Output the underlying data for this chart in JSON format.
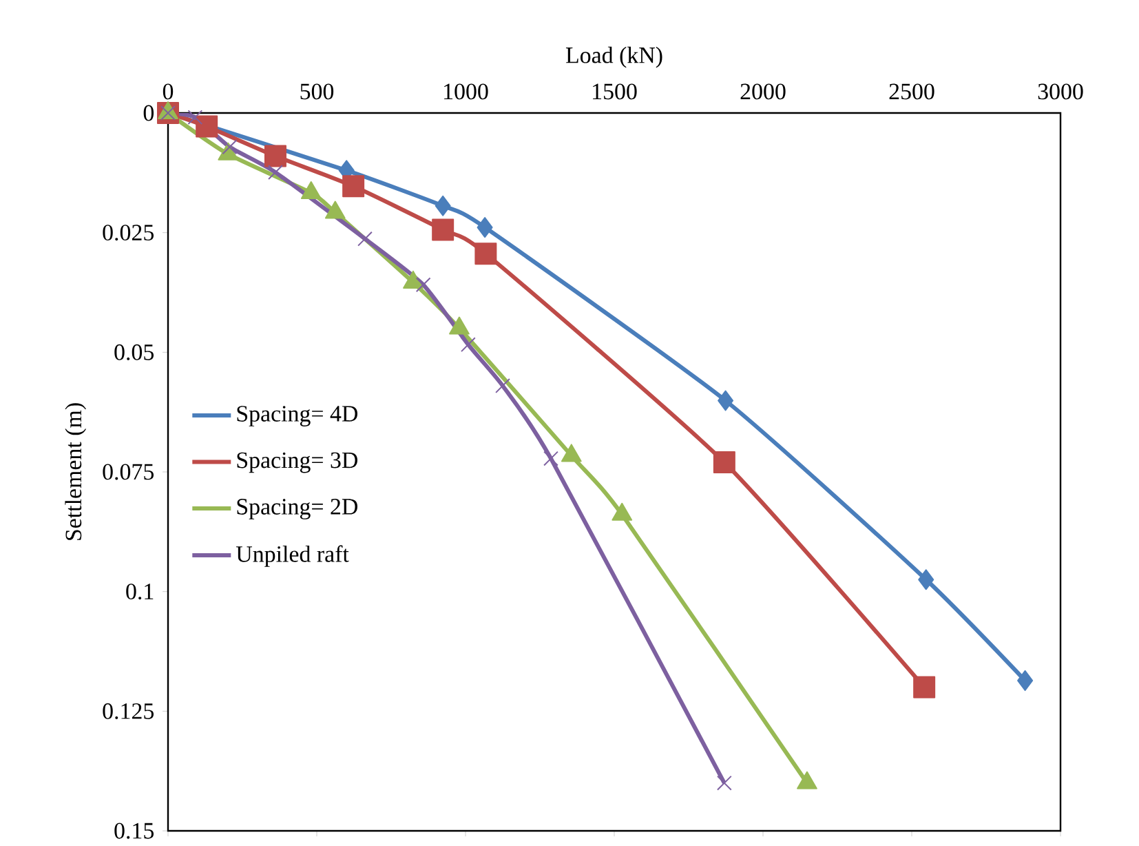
{
  "chart_data": {
    "type": "line",
    "xlabel": "Load (kN)",
    "ylabel": "Settlement (m)",
    "xlim": [
      0,
      3000
    ],
    "xticks": [
      0,
      500,
      1000,
      1500,
      2000,
      2500,
      3000
    ],
    "ylim": [
      0.15,
      0
    ],
    "yticks": [
      0,
      0.025,
      0.05,
      0.075,
      0.1,
      0.125,
      0.15
    ],
    "grid": false,
    "legend": "left",
    "line_style": "solid",
    "series": [
      {
        "name": "Spacing= 4D",
        "color": "#4a7ebb",
        "marker": "diamond",
        "x": [
          0,
          600,
          924,
          1065,
          1874,
          2548,
          2881
        ],
        "values": [
          0,
          0.012,
          0.0194,
          0.0239,
          0.0601,
          0.0975,
          0.1186
        ]
      },
      {
        "name": "Spacing= 3D",
        "color": "#be4b48",
        "marker": "square",
        "x": [
          0,
          130,
          361,
          623,
          924,
          1068,
          1870,
          2542
        ],
        "values": [
          0,
          0.0028,
          0.009,
          0.0153,
          0.0244,
          0.0294,
          0.073,
          0.12
        ]
      },
      {
        "name": "Spacing= 2D",
        "color": "#98b954",
        "marker": "triangle",
        "x": [
          0,
          202,
          481,
          562,
          824,
          979,
          1356,
          1526,
          2148
        ],
        "values": [
          0,
          0.0086,
          0.0167,
          0.0208,
          0.0354,
          0.045,
          0.0716,
          0.0839,
          0.14
        ]
      },
      {
        "name": "Unpiled raft",
        "color": "#7d60a0",
        "marker": "cross",
        "x": [
          0,
          91,
          207,
          361,
          662,
          858,
          1009,
          1125,
          1287,
          1870
        ],
        "values": [
          0,
          0.0009,
          0.0071,
          0.0124,
          0.0263,
          0.0359,
          0.0484,
          0.057,
          0.0722,
          0.14
        ]
      }
    ]
  }
}
